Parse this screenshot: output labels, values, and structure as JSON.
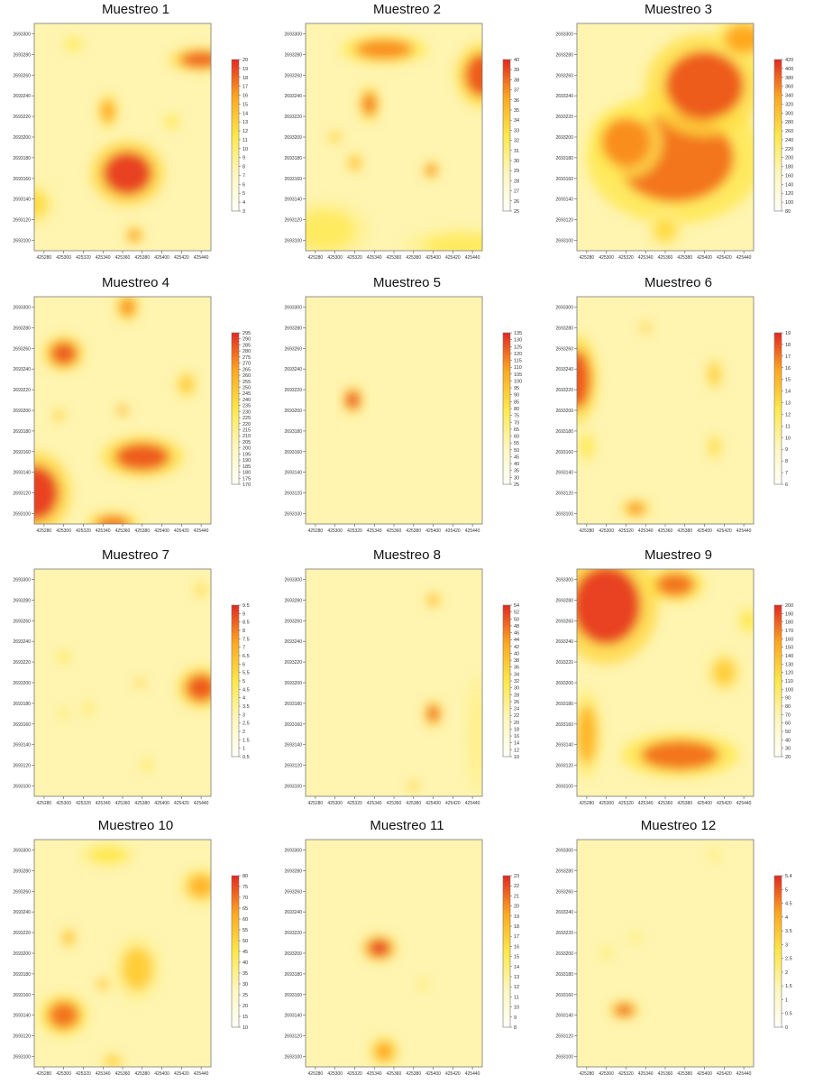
{
  "chart_data": [
    {
      "type": "heatmap",
      "title": "Muestreo 1",
      "colorbar_ticks": [
        "20",
        "19",
        "18",
        "17",
        "16",
        "15",
        "14",
        "13",
        "12",
        "11",
        "10",
        "9",
        "8",
        "7",
        "6",
        "5",
        "4",
        "3"
      ],
      "colorbar_range": [
        3,
        20
      ],
      "x_ticks": [
        "425280",
        "425300",
        "425320",
        "425340",
        "425360",
        "425380",
        "425400",
        "425420",
        "425440"
      ],
      "y_ticks": [
        "2693300",
        "2693280",
        "2693260",
        "2693240",
        "2693220",
        "2693200",
        "2693180",
        "2693160",
        "2693140",
        "2693120",
        "2693100"
      ],
      "hotspots": [
        {
          "x": 425365,
          "y": 2693165,
          "rx": 25,
          "ry": 22,
          "level": 0.95
        },
        {
          "x": 425345,
          "y": 2693225,
          "rx": 7,
          "ry": 12,
          "level": 0.75
        },
        {
          "x": 425440,
          "y": 2693275,
          "rx": 22,
          "ry": 8,
          "level": 0.9
        },
        {
          "x": 425265,
          "y": 2693135,
          "rx": 18,
          "ry": 15,
          "level": 0.55
        },
        {
          "x": 425372,
          "y": 2693105,
          "rx": 6,
          "ry": 6,
          "level": 0.8
        },
        {
          "x": 425310,
          "y": 2693290,
          "rx": 8,
          "ry": 6,
          "level": 0.45
        },
        {
          "x": 425410,
          "y": 2693215,
          "rx": 6,
          "ry": 6,
          "level": 0.5
        }
      ]
    },
    {
      "type": "heatmap",
      "title": "Muestreo 2",
      "colorbar_ticks": [
        "40",
        "39",
        "38",
        "37",
        "36",
        "35",
        "34",
        "33",
        "32",
        "31",
        "30",
        "29",
        "28",
        "27",
        "26",
        "25"
      ],
      "colorbar_range": [
        25,
        40
      ],
      "x_ticks": [
        "425280",
        "425300",
        "425320",
        "425340",
        "425360",
        "425380",
        "425400",
        "425420",
        "425440"
      ],
      "y_ticks": [
        "2693300",
        "2693280",
        "2693260",
        "2693240",
        "2693220",
        "2693200",
        "2693180",
        "2693160",
        "2693140",
        "2693120",
        "2693100"
      ],
      "hotspots": [
        {
          "x": 425350,
          "y": 2693285,
          "rx": 30,
          "ry": 10,
          "level": 0.8
        },
        {
          "x": 425450,
          "y": 2693260,
          "rx": 18,
          "ry": 22,
          "level": 0.9
        },
        {
          "x": 425335,
          "y": 2693232,
          "rx": 7,
          "ry": 12,
          "level": 0.85
        },
        {
          "x": 425320,
          "y": 2693175,
          "rx": 5,
          "ry": 7,
          "level": 0.7
        },
        {
          "x": 425398,
          "y": 2693168,
          "rx": 5,
          "ry": 6,
          "level": 0.85
        },
        {
          "x": 425300,
          "y": 2693200,
          "rx": 5,
          "ry": 5,
          "level": 0.6
        },
        {
          "x": 425290,
          "y": 2693110,
          "rx": 30,
          "ry": 20,
          "level": 0.45
        },
        {
          "x": 425430,
          "y": 2693095,
          "rx": 40,
          "ry": 12,
          "level": 0.45
        }
      ]
    },
    {
      "type": "heatmap",
      "title": "Muestreo 3",
      "colorbar_ticks": [
        "420",
        "400",
        "380",
        "360",
        "340",
        "320",
        "300",
        "280",
        "260",
        "240",
        "220",
        "200",
        "180",
        "160",
        "140",
        "120",
        "100",
        "80"
      ],
      "colorbar_range": [
        80,
        420
      ],
      "x_ticks": [
        "425280",
        "425300",
        "425320",
        "425340",
        "425360",
        "425380",
        "425400",
        "425420",
        "425440"
      ],
      "y_ticks": [
        "2693300",
        "2693280",
        "2693260",
        "2693240",
        "2693220",
        "2693200",
        "2693180",
        "2693160",
        "2693140",
        "2693120",
        "2693100"
      ],
      "hotspots": [
        {
          "x": 425370,
          "y": 2693180,
          "rx": 60,
          "ry": 45,
          "level": 0.85
        },
        {
          "x": 425400,
          "y": 2693250,
          "rx": 40,
          "ry": 35,
          "level": 0.9
        },
        {
          "x": 425440,
          "y": 2693295,
          "rx": 20,
          "ry": 15,
          "level": 0.75
        },
        {
          "x": 425320,
          "y": 2693195,
          "rx": 25,
          "ry": 25,
          "level": 0.8
        },
        {
          "x": 425360,
          "y": 2693110,
          "rx": 12,
          "ry": 12,
          "level": 0.55
        }
      ]
    },
    {
      "type": "heatmap",
      "title": "Muestreo 4",
      "colorbar_ticks": [
        "295",
        "290",
        "285",
        "280",
        "275",
        "270",
        "265",
        "260",
        "255",
        "250",
        "245",
        "240",
        "235",
        "230",
        "225",
        "220",
        "215",
        "210",
        "205",
        "200",
        "195",
        "190",
        "185",
        "180",
        "175",
        "170"
      ],
      "colorbar_range": [
        170,
        295
      ],
      "x_ticks": [
        "425280",
        "425300",
        "425320",
        "425340",
        "425360",
        "425380",
        "425400",
        "425420",
        "425440"
      ],
      "y_ticks": [
        "2693300",
        "2693280",
        "2693260",
        "2693240",
        "2693220",
        "2693200",
        "2693180",
        "2693160",
        "2693140",
        "2693120",
        "2693100"
      ],
      "hotspots": [
        {
          "x": 425270,
          "y": 2693120,
          "rx": 25,
          "ry": 28,
          "level": 0.95
        },
        {
          "x": 425300,
          "y": 2693255,
          "rx": 14,
          "ry": 12,
          "level": 0.9
        },
        {
          "x": 425380,
          "y": 2693155,
          "rx": 28,
          "ry": 14,
          "level": 0.9
        },
        {
          "x": 425365,
          "y": 2693300,
          "rx": 8,
          "ry": 10,
          "level": 0.8
        },
        {
          "x": 425350,
          "y": 2693090,
          "rx": 18,
          "ry": 8,
          "level": 0.85
        },
        {
          "x": 425425,
          "y": 2693225,
          "rx": 8,
          "ry": 10,
          "level": 0.6
        },
        {
          "x": 425295,
          "y": 2693195,
          "rx": 5,
          "ry": 5,
          "level": 0.6
        },
        {
          "x": 425360,
          "y": 2693200,
          "rx": 4,
          "ry": 4,
          "level": 0.8
        }
      ]
    },
    {
      "type": "heatmap",
      "title": "Muestreo 5",
      "colorbar_ticks": [
        "135",
        "130",
        "125",
        "120",
        "115",
        "110",
        "105",
        "100",
        "95",
        "90",
        "85",
        "80",
        "75",
        "70",
        "65",
        "60",
        "55",
        "50",
        "45",
        "40",
        "35",
        "30",
        "25"
      ],
      "colorbar_range": [
        25,
        135
      ],
      "x_ticks": [
        "425280",
        "425300",
        "425320",
        "425340",
        "425360",
        "425380",
        "425400",
        "425420",
        "425440"
      ],
      "y_ticks": [
        "2693300",
        "2693280",
        "2693260",
        "2693240",
        "2693220",
        "2693200",
        "2693180",
        "2693160",
        "2693140",
        "2693120",
        "2693100"
      ],
      "hotspots": [
        {
          "x": 425318,
          "y": 2693210,
          "rx": 7,
          "ry": 9,
          "level": 0.95
        }
      ]
    },
    {
      "type": "heatmap",
      "title": "Muestreo 6",
      "colorbar_ticks": [
        "19",
        "18",
        "17",
        "16",
        "15",
        "14",
        "13",
        "12",
        "11",
        "10",
        "9",
        "8",
        "7",
        "6"
      ],
      "colorbar_range": [
        6,
        19
      ],
      "x_ticks": [
        "425280",
        "425300",
        "425320",
        "425340",
        "425360",
        "425380",
        "425400",
        "425420",
        "425440"
      ],
      "y_ticks": [
        "2693300",
        "2693280",
        "2693260",
        "2693240",
        "2693220",
        "2693200",
        "2693180",
        "2693160",
        "2693140",
        "2693120",
        "2693100"
      ],
      "hotspots": [
        {
          "x": 425270,
          "y": 2693230,
          "rx": 14,
          "ry": 30,
          "level": 0.9
        },
        {
          "x": 425330,
          "y": 2693105,
          "rx": 10,
          "ry": 6,
          "level": 0.8
        },
        {
          "x": 425410,
          "y": 2693235,
          "rx": 6,
          "ry": 12,
          "level": 0.6
        },
        {
          "x": 425410,
          "y": 2693165,
          "rx": 5,
          "ry": 10,
          "level": 0.55
        },
        {
          "x": 425340,
          "y": 2693280,
          "rx": 4,
          "ry": 5,
          "level": 0.6
        },
        {
          "x": 425280,
          "y": 2693165,
          "rx": 6,
          "ry": 12,
          "level": 0.5
        }
      ]
    },
    {
      "type": "heatmap",
      "title": "Muestreo 7",
      "colorbar_ticks": [
        "9.5",
        "9",
        "8.5",
        "8",
        "7.5",
        "7",
        "6.5",
        "6",
        "5.5",
        "5",
        "4.5",
        "4",
        "3.5",
        "3",
        "2.5",
        "2",
        "1.5",
        "1",
        "0.5"
      ],
      "colorbar_range": [
        0.5,
        9.5
      ],
      "x_ticks": [
        "425280",
        "425300",
        "425320",
        "425340",
        "425360",
        "425380",
        "425400",
        "425420",
        "425440"
      ],
      "y_ticks": [
        "2693300",
        "2693280",
        "2693260",
        "2693240",
        "2693220",
        "2693200",
        "2693180",
        "2693160",
        "2693140",
        "2693120",
        "2693100"
      ],
      "hotspots": [
        {
          "x": 425440,
          "y": 2693195,
          "rx": 16,
          "ry": 14,
          "level": 0.9
        },
        {
          "x": 425440,
          "y": 2693290,
          "rx": 5,
          "ry": 6,
          "level": 0.55
        },
        {
          "x": 425300,
          "y": 2693225,
          "rx": 5,
          "ry": 5,
          "level": 0.5
        },
        {
          "x": 425325,
          "y": 2693175,
          "rx": 4,
          "ry": 5,
          "level": 0.5
        },
        {
          "x": 425378,
          "y": 2693200,
          "rx": 4,
          "ry": 4,
          "level": 0.6
        },
        {
          "x": 425385,
          "y": 2693120,
          "rx": 4,
          "ry": 5,
          "level": 0.5
        },
        {
          "x": 425300,
          "y": 2693170,
          "rx": 4,
          "ry": 4,
          "level": 0.45
        }
      ]
    },
    {
      "type": "heatmap",
      "title": "Muestreo 8",
      "colorbar_ticks": [
        "54",
        "52",
        "50",
        "48",
        "46",
        "44",
        "42",
        "40",
        "38",
        "36",
        "34",
        "32",
        "30",
        "28",
        "26",
        "24",
        "22",
        "20",
        "18",
        "16",
        "14",
        "12",
        "10"
      ],
      "colorbar_range": [
        10,
        54
      ],
      "x_ticks": [
        "425280",
        "425300",
        "425320",
        "425340",
        "425360",
        "425380",
        "425400",
        "425420",
        "425440"
      ],
      "y_ticks": [
        "2693300",
        "2693280",
        "2693260",
        "2693240",
        "2693220",
        "2693200",
        "2693180",
        "2693160",
        "2693140",
        "2693120",
        "2693100"
      ],
      "hotspots": [
        {
          "x": 425400,
          "y": 2693170,
          "rx": 6,
          "ry": 9,
          "level": 0.9
        },
        {
          "x": 425400,
          "y": 2693280,
          "rx": 5,
          "ry": 5,
          "level": 0.75
        },
        {
          "x": 425380,
          "y": 2693100,
          "rx": 4,
          "ry": 5,
          "level": 0.6
        },
        {
          "x": 425445,
          "y": 2693150,
          "rx": 8,
          "ry": 40,
          "level": 0.35
        }
      ]
    },
    {
      "type": "heatmap",
      "title": "Muestreo 9",
      "colorbar_ticks": [
        "200",
        "190",
        "180",
        "170",
        "160",
        "150",
        "140",
        "130",
        "120",
        "110",
        "100",
        "90",
        "80",
        "70",
        "60",
        "50",
        "40",
        "30",
        "20"
      ],
      "colorbar_range": [
        20,
        200
      ],
      "x_ticks": [
        "425280",
        "425300",
        "425320",
        "425340",
        "425360",
        "425380",
        "425400",
        "425420",
        "425440"
      ],
      "y_ticks": [
        "2693300",
        "2693280",
        "2693260",
        "2693240",
        "2693220",
        "2693200",
        "2693180",
        "2693160",
        "2693140",
        "2693120",
        "2693100"
      ],
      "hotspots": [
        {
          "x": 425300,
          "y": 2693275,
          "rx": 35,
          "ry": 40,
          "level": 0.95
        },
        {
          "x": 425370,
          "y": 2693295,
          "rx": 20,
          "ry": 12,
          "level": 0.85
        },
        {
          "x": 425375,
          "y": 2693130,
          "rx": 40,
          "ry": 15,
          "level": 0.85
        },
        {
          "x": 425280,
          "y": 2693150,
          "rx": 10,
          "ry": 30,
          "level": 0.7
        },
        {
          "x": 425420,
          "y": 2693210,
          "rx": 12,
          "ry": 14,
          "level": 0.6
        },
        {
          "x": 425445,
          "y": 2693260,
          "rx": 8,
          "ry": 10,
          "level": 0.5
        }
      ]
    },
    {
      "type": "heatmap",
      "title": "Muestreo 10",
      "colorbar_ticks": [
        "80",
        "75",
        "70",
        "65",
        "60",
        "55",
        "50",
        "45",
        "40",
        "35",
        "30",
        "25",
        "20",
        "15",
        "10"
      ],
      "colorbar_range": [
        10,
        80
      ],
      "x_ticks": [
        "425280",
        "425300",
        "425320",
        "425340",
        "425360",
        "425380",
        "425400",
        "425420",
        "425440"
      ],
      "y_ticks": [
        "2693300",
        "2693280",
        "2693260",
        "2693240",
        "2693220",
        "2693200",
        "2693180",
        "2693160",
        "2693140",
        "2693120",
        "2693100"
      ],
      "hotspots": [
        {
          "x": 425300,
          "y": 2693140,
          "rx": 16,
          "ry": 14,
          "level": 0.85
        },
        {
          "x": 425375,
          "y": 2693185,
          "rx": 16,
          "ry": 22,
          "level": 0.6
        },
        {
          "x": 425440,
          "y": 2693265,
          "rx": 14,
          "ry": 12,
          "level": 0.7
        },
        {
          "x": 425305,
          "y": 2693215,
          "rx": 5,
          "ry": 7,
          "level": 0.7
        },
        {
          "x": 425345,
          "y": 2693295,
          "rx": 20,
          "ry": 8,
          "level": 0.5
        },
        {
          "x": 425350,
          "y": 2693095,
          "rx": 8,
          "ry": 6,
          "level": 0.6
        },
        {
          "x": 425340,
          "y": 2693170,
          "rx": 5,
          "ry": 5,
          "level": 0.65
        }
      ]
    },
    {
      "type": "heatmap",
      "title": "Muestreo 11",
      "colorbar_ticks": [
        "23",
        "22",
        "21",
        "20",
        "19",
        "18",
        "17",
        "16",
        "15",
        "14",
        "13",
        "12",
        "11",
        "10",
        "9",
        "8"
      ],
      "colorbar_range": [
        8,
        23
      ],
      "x_ticks": [
        "425280",
        "425300",
        "425320",
        "425340",
        "425360",
        "425380",
        "425400",
        "425420",
        "425440"
      ],
      "y_ticks": [
        "2693300",
        "2693280",
        "2693260",
        "2693240",
        "2693220",
        "2693200",
        "2693180",
        "2693160",
        "2693140",
        "2693120",
        "2693100"
      ],
      "hotspots": [
        {
          "x": 425345,
          "y": 2693205,
          "rx": 12,
          "ry": 9,
          "level": 0.95
        },
        {
          "x": 425350,
          "y": 2693105,
          "rx": 10,
          "ry": 10,
          "level": 0.75
        },
        {
          "x": 425390,
          "y": 2693170,
          "rx": 4,
          "ry": 4,
          "level": 0.45
        }
      ]
    },
    {
      "type": "heatmap",
      "title": "Muestreo 12",
      "colorbar_ticks": [
        "5.4",
        "5",
        "4.5",
        "4",
        "3.5",
        "3",
        "2.5",
        "2",
        "1.5",
        "1",
        "0.5",
        "0"
      ],
      "colorbar_range": [
        0,
        5.4
      ],
      "x_ticks": [
        "425280",
        "425300",
        "425320",
        "425340",
        "425360",
        "425380",
        "425400",
        "425420",
        "425440"
      ],
      "y_ticks": [
        "2693300",
        "2693280",
        "2693260",
        "2693240",
        "2693220",
        "2693200",
        "2693180",
        "2693160",
        "2693140",
        "2693120",
        "2693100"
      ],
      "hotspots": [
        {
          "x": 425318,
          "y": 2693145,
          "rx": 10,
          "ry": 6,
          "level": 0.9
        },
        {
          "x": 425330,
          "y": 2693215,
          "rx": 4,
          "ry": 4,
          "level": 0.45
        },
        {
          "x": 425410,
          "y": 2693295,
          "rx": 4,
          "ry": 4,
          "level": 0.45
        },
        {
          "x": 425300,
          "y": 2693200,
          "rx": 5,
          "ry": 5,
          "level": 0.4
        }
      ]
    }
  ]
}
